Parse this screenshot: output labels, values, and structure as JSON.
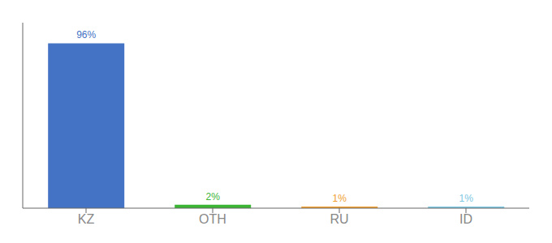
{
  "chart_data": {
    "type": "bar",
    "categories": [
      "KZ",
      "OTH",
      "RU",
      "ID"
    ],
    "values": [
      96,
      2,
      1,
      1
    ],
    "value_labels": [
      "96%",
      "2%",
      "1%",
      "1%"
    ],
    "colors": [
      "#4472c4",
      "#3cb535",
      "#f0a030",
      "#7ec8e3"
    ],
    "ylim": [
      0,
      108
    ],
    "data_labels": true,
    "tick_labels": "x",
    "grid": false
  }
}
